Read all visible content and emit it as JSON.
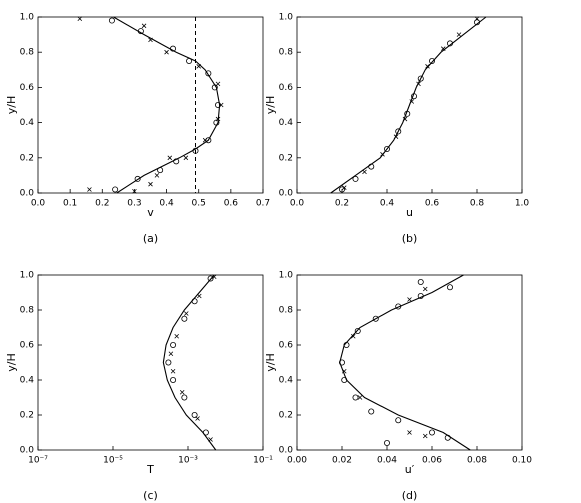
{
  "chart_data": [
    {
      "type": "line",
      "x_label": "v",
      "y_label": "y/H",
      "caption": "(a)",
      "xlim": [
        0,
        0.7
      ],
      "ylim": [
        0,
        1
      ],
      "xticks": [
        {
          "value": 0,
          "label": "0.0"
        },
        0.1,
        0.2,
        0.3,
        0.4,
        0.5,
        0.6,
        0.7
      ],
      "yticks": [
        {
          "value": 0,
          "label": "0.0"
        },
        0.2,
        0.4,
        0.6,
        0.8,
        {
          "value": 1,
          "label": "1.0"
        }
      ],
      "vline": 0.49,
      "series": [
        {
          "style": "line",
          "color": "#000",
          "x": [
            0.245,
            0.33,
            0.44,
            0.49,
            0.53,
            0.56,
            0.565,
            0.555,
            0.52,
            0.49,
            0.43,
            0.33,
            0.235
          ],
          "values": [
            0,
            0.1,
            0.2,
            0.25,
            0.3,
            0.4,
            0.5,
            0.6,
            0.7,
            0.75,
            0.8,
            0.9,
            1.0
          ]
        },
        {
          "style": "circle",
          "color": "#000",
          "x": [
            0.23,
            0.32,
            0.42,
            0.47,
            0.53,
            0.55,
            0.56,
            0.555,
            0.53,
            0.49,
            0.43,
            0.38,
            0.31,
            0.24
          ],
          "values": [
            0.98,
            0.92,
            0.82,
            0.75,
            0.68,
            0.6,
            0.5,
            0.4,
            0.3,
            0.24,
            0.18,
            0.13,
            0.08,
            0.02
          ]
        },
        {
          "style": "cross",
          "color": "#000",
          "x": [
            0.13,
            0.33,
            0.35,
            0.4,
            0.5,
            0.56,
            0.57,
            0.56,
            0.52,
            0.46,
            0.41,
            0.37,
            0.35,
            0.16,
            0.3
          ],
          "values": [
            0.99,
            0.95,
            0.87,
            0.8,
            0.72,
            0.62,
            0.5,
            0.42,
            0.3,
            0.2,
            0.2,
            0.1,
            0.05,
            0.02,
            0.01
          ]
        }
      ]
    },
    {
      "type": "line",
      "x_label": "u",
      "y_label": "y/H",
      "caption": "(b)",
      "xlim": [
        0,
        1
      ],
      "ylim": [
        0,
        1
      ],
      "xticks": [
        {
          "value": 0,
          "label": "0.0"
        },
        0.2,
        0.4,
        0.6,
        0.8,
        {
          "value": 1,
          "label": "1.0"
        }
      ],
      "yticks": [
        {
          "value": 0,
          "label": "0.0"
        },
        0.2,
        0.4,
        0.6,
        0.8,
        {
          "value": 1,
          "label": "1.0"
        }
      ],
      "series": [
        {
          "style": "line",
          "color": "#000",
          "x": [
            0.15,
            0.26,
            0.37,
            0.43,
            0.47,
            0.5,
            0.53,
            0.57,
            0.64,
            0.74,
            0.84
          ],
          "values": [
            0,
            0.1,
            0.2,
            0.3,
            0.4,
            0.5,
            0.6,
            0.7,
            0.8,
            0.9,
            1.0
          ]
        },
        {
          "style": "circle",
          "color": "#000",
          "x": [
            0.2,
            0.26,
            0.33,
            0.4,
            0.45,
            0.49,
            0.52,
            0.55,
            0.6,
            0.68,
            0.8
          ],
          "values": [
            0.02,
            0.08,
            0.15,
            0.25,
            0.35,
            0.45,
            0.55,
            0.65,
            0.75,
            0.85,
            0.97
          ]
        },
        {
          "style": "cross",
          "color": "#000",
          "x": [
            0.21,
            0.3,
            0.38,
            0.44,
            0.48,
            0.51,
            0.54,
            0.58,
            0.65,
            0.72,
            0.8
          ],
          "values": [
            0.03,
            0.12,
            0.22,
            0.32,
            0.42,
            0.52,
            0.62,
            0.72,
            0.82,
            0.9,
            0.99
          ]
        }
      ]
    },
    {
      "type": "line",
      "x_label": "T",
      "y_label": "y/H",
      "caption": "(c)",
      "xscale": "log",
      "xlim": [
        1e-07,
        0.1
      ],
      "ylim": [
        0,
        1
      ],
      "xticks": [
        {
          "value": 1e-07,
          "label": "10⁻⁷"
        },
        {
          "value": 1e-05,
          "label": "10⁻⁵"
        },
        {
          "value": 0.001,
          "label": "10⁻³"
        },
        {
          "value": 0.1,
          "label": "10⁻¹"
        }
      ],
      "yticks": [
        {
          "value": 0,
          "label": "0.0"
        },
        0.2,
        0.4,
        0.6,
        0.8,
        {
          "value": 1,
          "label": "1.0"
        }
      ],
      "series": [
        {
          "style": "line",
          "color": "#000",
          "x": [
            0.0055,
            0.0025,
            0.0009,
            0.00045,
            0.00028,
            0.00022,
            0.00026,
            0.0004,
            0.0008,
            0.002,
            0.005
          ],
          "values": [
            0,
            0.1,
            0.2,
            0.3,
            0.4,
            0.5,
            0.6,
            0.7,
            0.8,
            0.9,
            1.0
          ]
        },
        {
          "style": "circle",
          "color": "#000",
          "x": [
            0.004,
            0.0015,
            0.0008,
            0.0004,
            0.0003,
            0.0004,
            0.0008,
            0.0015,
            0.003
          ],
          "values": [
            0.98,
            0.85,
            0.75,
            0.6,
            0.5,
            0.4,
            0.3,
            0.2,
            0.1
          ]
        },
        {
          "style": "cross",
          "color": "#000",
          "x": [
            0.005,
            0.002,
            0.0009,
            0.0005,
            0.00035,
            0.0004,
            0.0007,
            0.0018,
            0.004
          ],
          "values": [
            0.99,
            0.88,
            0.78,
            0.65,
            0.55,
            0.45,
            0.33,
            0.18,
            0.06
          ]
        }
      ]
    },
    {
      "type": "line",
      "x_label": "u′",
      "y_label": "y/H",
      "caption": "(d)",
      "xlim": [
        0,
        0.1
      ],
      "ylim": [
        0,
        1
      ],
      "xticks": [
        {
          "value": 0,
          "label": "0.00"
        },
        0.02,
        0.04,
        0.06,
        0.08,
        {
          "value": 0.1,
          "label": "0.10"
        }
      ],
      "yticks": [
        {
          "value": 0,
          "label": "0.0"
        },
        0.2,
        0.4,
        0.6,
        0.8,
        {
          "value": 1,
          "label": "1.0"
        }
      ],
      "series": [
        {
          "style": "line",
          "color": "#000",
          "x": [
            0.077,
            0.065,
            0.045,
            0.03,
            0.022,
            0.019,
            0.021,
            0.028,
            0.042,
            0.06,
            0.074
          ],
          "values": [
            0,
            0.1,
            0.2,
            0.3,
            0.4,
            0.5,
            0.6,
            0.7,
            0.8,
            0.9,
            1.0
          ]
        },
        {
          "style": "circle",
          "color": "#000",
          "x": [
            0.04,
            0.055,
            0.068,
            0.055,
            0.045,
            0.035,
            0.027,
            0.022,
            0.02,
            0.021,
            0.026,
            0.033,
            0.045,
            0.06,
            0.067
          ],
          "values": [
            0.04,
            0.96,
            0.93,
            0.88,
            0.82,
            0.75,
            0.68,
            0.6,
            0.5,
            0.4,
            0.3,
            0.22,
            0.17,
            0.1,
            0.07
          ]
        },
        {
          "style": "cross",
          "color": "#000",
          "x": [
            0.057,
            0.05,
            0.025,
            0.021,
            0.028,
            0.057,
            0.05
          ],
          "values": [
            0.92,
            0.86,
            0.65,
            0.45,
            0.3,
            0.08,
            0.1
          ]
        }
      ]
    }
  ]
}
